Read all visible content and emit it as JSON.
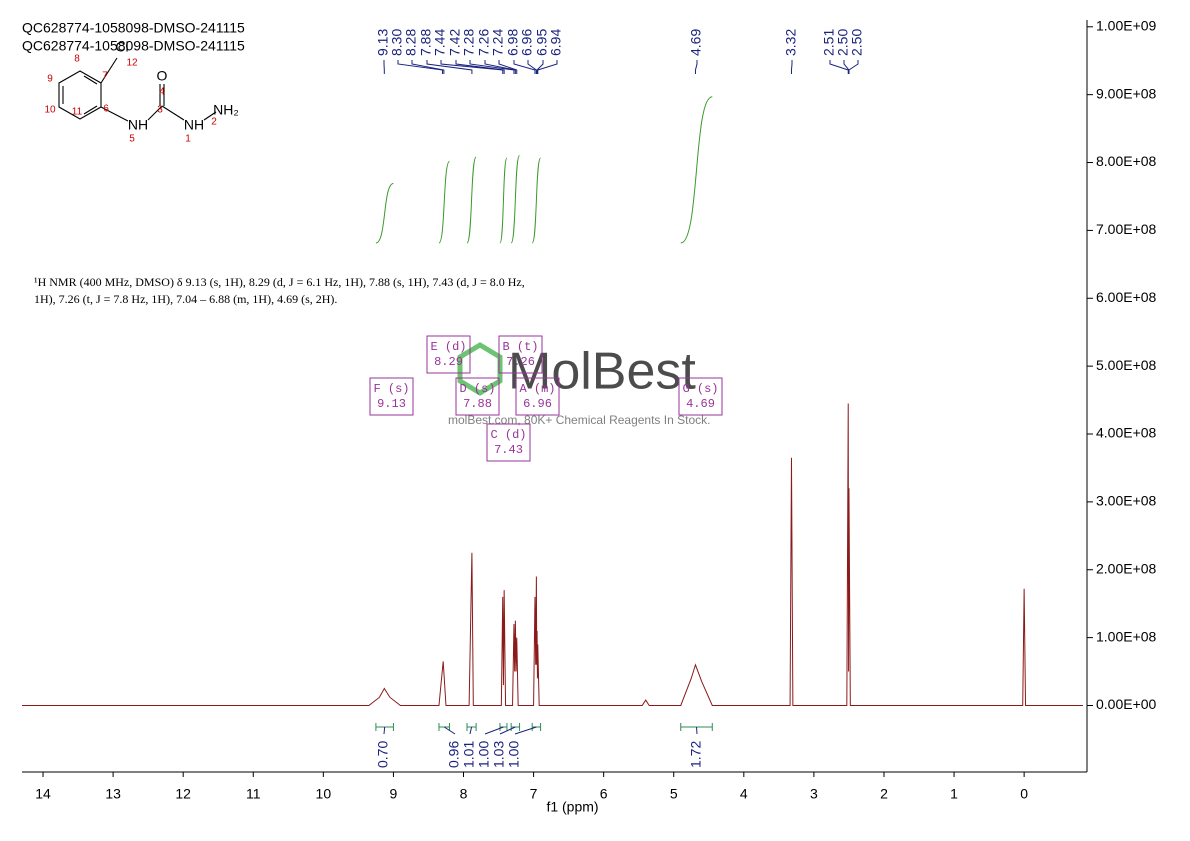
{
  "chart_data": {
    "type": "line",
    "title": "QC628774-1058098-DMSO-241115",
    "subtitle": "QC628774-1058098-DMSO-241115",
    "annotation": [
      "¹H NMR (400 MHz, DMSO) δ 9.13 (s, 1H), 8.29 (d, J = 6.1 Hz, 1H), 7.88 (s, 1H), 7.43 (d, J = 8.0 Hz,",
      "1H), 7.26 (t, J = 7.8 Hz, 1H), 7.04 – 6.88 (m, 1H), 4.69 (s, 2H)."
    ],
    "x_label": "f1 (ppm)",
    "color": "#8b1a1a",
    "xlim": [
      14.3,
      -0.84
    ],
    "ylim": [
      -98000000,
      1010000000
    ],
    "xticks": [
      14,
      13,
      12,
      11,
      10,
      9,
      8,
      7,
      6,
      5,
      4,
      3,
      2,
      1,
      0
    ],
    "yticks": [
      {
        "value": 0,
        "label": "0.00E+00"
      },
      {
        "value": 100000000,
        "label": "1.00E+08"
      },
      {
        "value": 200000000,
        "label": "2.00E+08"
      },
      {
        "value": 300000000,
        "label": "3.00E+08"
      },
      {
        "value": 400000000,
        "label": "4.00E+08"
      },
      {
        "value": 500000000,
        "label": "5.00E+08"
      },
      {
        "value": 600000000,
        "label": "6.00E+08"
      },
      {
        "value": 700000000,
        "label": "7.00E+08"
      },
      {
        "value": 800000000,
        "label": "8.00E+08"
      },
      {
        "value": 900000000,
        "label": "9.00E+08"
      },
      {
        "value": 1000000000,
        "label": "1.00E+09"
      }
    ],
    "x": [
      14.3,
      9.35,
      9.2,
      9.13,
      9.05,
      8.9,
      8.35,
      8.29,
      8.25,
      7.92,
      7.88,
      7.86,
      7.46,
      7.44,
      7.43,
      7.42,
      7.4,
      7.3,
      7.28,
      7.27,
      7.26,
      7.25,
      7.24,
      7.22,
      7.0,
      6.98,
      6.97,
      6.96,
      6.955,
      6.95,
      6.945,
      6.94,
      6.92,
      5.45,
      5.4,
      5.35,
      4.9,
      4.75,
      4.69,
      4.6,
      4.45,
      3.34,
      3.32,
      3.3,
      2.53,
      2.51,
      2.505,
      2.5,
      2.48,
      0.02,
      0,
      -0.02,
      -0.84
    ],
    "values": [
      0,
      0,
      12000000,
      25000000,
      12000000,
      0,
      0,
      65000000,
      0,
      0,
      225000000,
      0,
      0,
      160000000,
      30000000,
      170000000,
      0,
      0,
      120000000,
      50000000,
      125000000,
      50000000,
      100000000,
      0,
      0,
      160000000,
      60000000,
      190000000,
      60000000,
      110000000,
      40000000,
      90000000,
      0,
      0,
      8000000,
      0,
      0,
      40000000,
      60000000,
      35000000,
      0,
      0,
      365000000,
      0,
      0,
      445000000,
      50000000,
      320000000,
      0,
      0,
      172000000,
      0,
      0
    ],
    "peak_labels": [
      {
        "value": 9.13,
        "label": "9.13"
      },
      {
        "value": 8.3,
        "label": "8.30"
      },
      {
        "value": 8.28,
        "label": "8.28"
      },
      {
        "value": 7.88,
        "label": "7.88"
      },
      {
        "value": 7.44,
        "label": "7.44"
      },
      {
        "value": 7.42,
        "label": "7.42"
      },
      {
        "value": 7.28,
        "label": "7.28"
      },
      {
        "value": 7.26,
        "label": "7.26"
      },
      {
        "value": 7.24,
        "label": "7.24"
      },
      {
        "value": 6.98,
        "label": "6.98"
      },
      {
        "value": 6.96,
        "label": "6.96"
      },
      {
        "value": 6.95,
        "label": "6.95"
      },
      {
        "value": 6.94,
        "label": "6.94"
      },
      {
        "value": 4.69,
        "label": "4.69"
      },
      {
        "value": 3.32,
        "label": "3.32"
      },
      {
        "value": 2.51,
        "label": "2.51"
      },
      {
        "value": 2.5,
        "label": "2.50"
      },
      {
        "value": 2.5,
        "label": "2.50"
      }
    ],
    "integrals": [
      {
        "from": 9.25,
        "to": 9.0,
        "value": {
          "value": 0.7,
          "label": "0.70"
        }
      },
      {
        "from": 8.35,
        "to": 8.2,
        "value": {
          "value": 0.96,
          "label": "0.96"
        }
      },
      {
        "from": 7.95,
        "to": 7.82,
        "value": {
          "value": 1.01,
          "label": "1.01"
        }
      },
      {
        "from": 7.48,
        "to": 7.38,
        "value": {
          "value": 1.0,
          "label": "1.00"
        }
      },
      {
        "from": 7.32,
        "to": 7.2,
        "value": {
          "value": 1.03,
          "label": "1.03"
        }
      },
      {
        "from": 7.02,
        "to": 6.9,
        "value": {
          "value": 1.0,
          "label": "1.00"
        }
      },
      {
        "from": 4.9,
        "to": 4.45,
        "value": {
          "value": 1.72,
          "label": "1.72"
        }
      }
    ],
    "multiplets": [
      {
        "label": "F (s)",
        "value": 9.13
      },
      {
        "label": "E (d)",
        "value": 8.29
      },
      {
        "label": "D (s)",
        "value": 7.88
      },
      {
        "label": "B (t)",
        "value": 7.26
      },
      {
        "label": "A (m)",
        "value": 6.96
      },
      {
        "label": "C (d)",
        "value": 7.43
      },
      {
        "label": "G (s)",
        "value": 4.69
      }
    ]
  },
  "structure": {
    "labels": [
      "Cl",
      "12",
      "8",
      "7",
      "9",
      "6",
      "10",
      "11",
      "O",
      "4",
      "3",
      "NH",
      "5",
      "NH",
      "1",
      "NH₂",
      "2"
    ]
  },
  "watermark": {
    "brand": "MolBest",
    "tagline": "molBest.com, 80K+ Chemical Reagents In Stock."
  }
}
